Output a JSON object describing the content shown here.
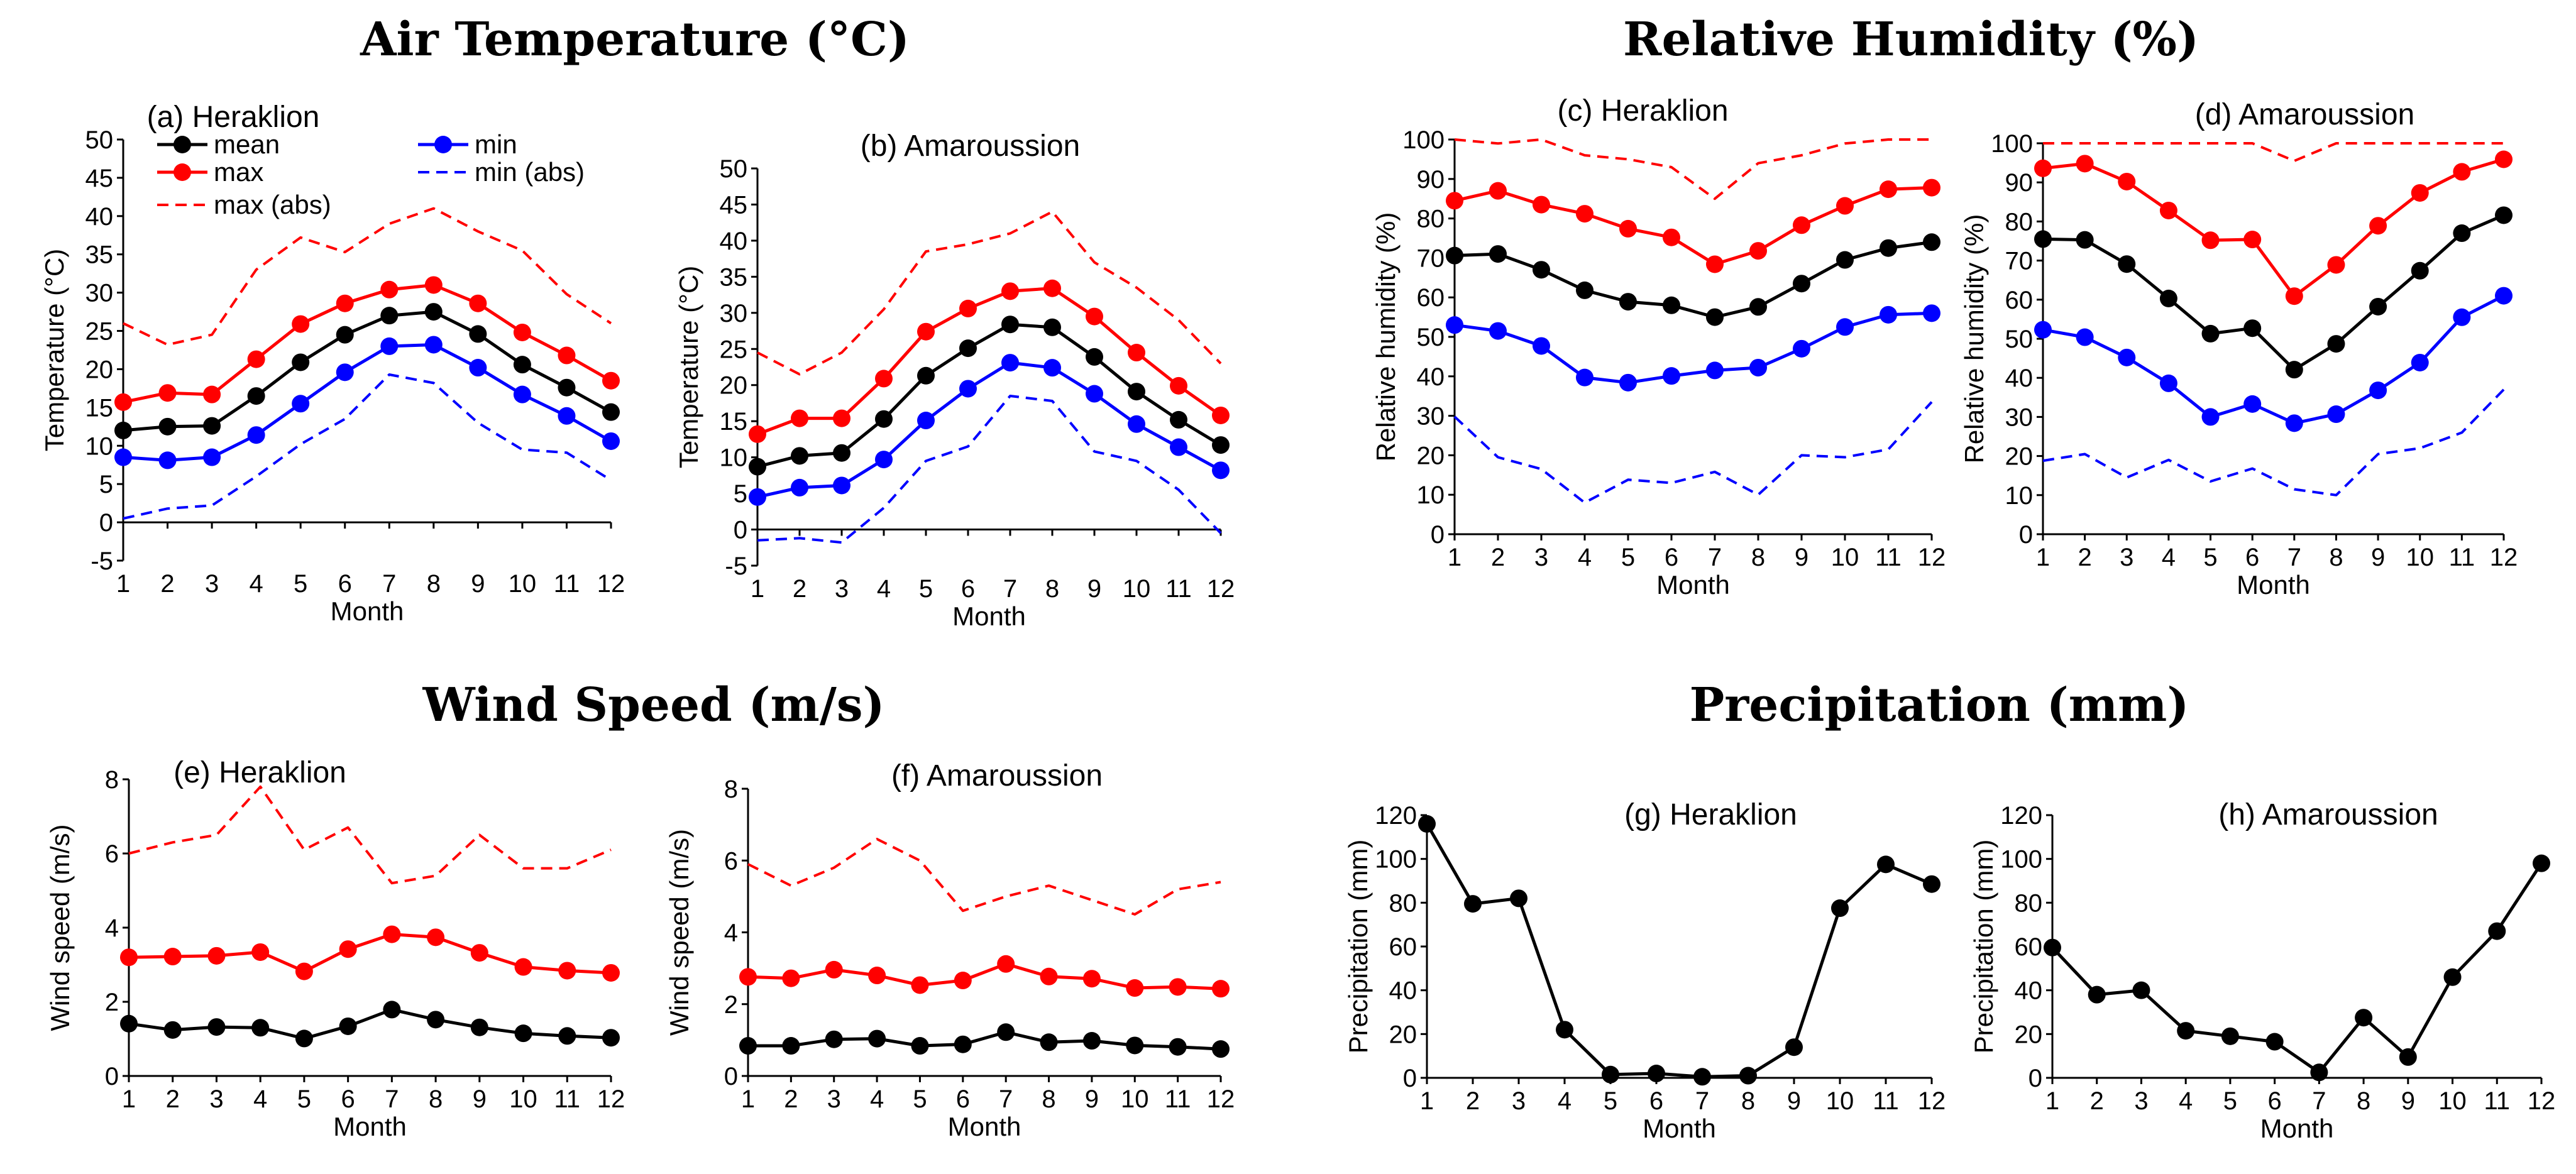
{
  "figure": {
    "group_titles": {
      "temperature": "Air Temperature (°C)",
      "humidity": "Relative Humidity (%)",
      "wind": "Wind Speed (m/s)",
      "precipitation": "Precipitation (mm)"
    },
    "colors": {
      "mean": "#000000",
      "max": "#ff0000",
      "min": "#0000ff"
    },
    "legend": {
      "mean": "mean",
      "max": "max",
      "max_abs": "max (abs)",
      "min": "min",
      "min_abs": "min (abs)"
    }
  },
  "chart_data": [
    {
      "id": "a",
      "type": "line",
      "title": "(a) Heraklion",
      "xlabel": "Month",
      "ylabel": "Temperature (°C)",
      "categories": [
        "1",
        "2",
        "3",
        "4",
        "5",
        "6",
        "7",
        "8",
        "9",
        "10",
        "11",
        "12"
      ],
      "ylim": [
        -5,
        50
      ],
      "ystep": 5,
      "series": [
        {
          "name": "max (abs)",
          "color": "#ff0000",
          "style": "dashed",
          "markers": false,
          "values": [
            26,
            23.2,
            24.5,
            33,
            37.2,
            35.3,
            39,
            41,
            38,
            35.5,
            29.8,
            26
          ]
        },
        {
          "name": "max",
          "color": "#ff0000",
          "style": "solid",
          "markers": true,
          "values": [
            15.7,
            16.9,
            16.7,
            21.3,
            25.9,
            28.6,
            30.4,
            31,
            28.6,
            24.8,
            21.8,
            18.5
          ]
        },
        {
          "name": "mean",
          "color": "#000000",
          "style": "solid",
          "markers": true,
          "values": [
            12,
            12.5,
            12.6,
            16.5,
            20.9,
            24.5,
            27,
            27.5,
            24.6,
            20.6,
            17.6,
            14.4
          ]
        },
        {
          "name": "min",
          "color": "#0000ff",
          "style": "solid",
          "markers": true,
          "values": [
            8.5,
            8.1,
            8.5,
            11.4,
            15.5,
            19.6,
            23,
            23.2,
            20.2,
            16.7,
            13.9,
            10.6
          ]
        },
        {
          "name": "min (abs)",
          "color": "#0000ff",
          "style": "dashed",
          "markers": false,
          "values": [
            0.5,
            1.8,
            2.2,
            6,
            10.2,
            13.5,
            19.3,
            18.2,
            13,
            9.5,
            9.1,
            5.5
          ]
        }
      ]
    },
    {
      "id": "b",
      "type": "line",
      "title": "(b) Amaroussion",
      "xlabel": "Month",
      "ylabel": "Temperature (°C)",
      "categories": [
        "1",
        "2",
        "3",
        "4",
        "5",
        "6",
        "7",
        "8",
        "9",
        "10",
        "11",
        "12"
      ],
      "ylim": [
        -5,
        50
      ],
      "ystep": 5,
      "series": [
        {
          "name": "max (abs)",
          "color": "#ff0000",
          "style": "dashed",
          "markers": false,
          "values": [
            24.5,
            21.5,
            24.5,
            30.5,
            38.5,
            39.5,
            41,
            44,
            37,
            33.5,
            29,
            23
          ]
        },
        {
          "name": "max",
          "color": "#ff0000",
          "style": "solid",
          "markers": true,
          "values": [
            13.2,
            15.4,
            15.4,
            20.9,
            27.4,
            30.6,
            33,
            33.4,
            29.5,
            24.5,
            19.9,
            15.8
          ]
        },
        {
          "name": "mean",
          "color": "#000000",
          "style": "solid",
          "markers": true,
          "values": [
            8.7,
            10.2,
            10.6,
            15.3,
            21.3,
            25.1,
            28.4,
            28,
            23.9,
            19.1,
            15.2,
            11.7
          ]
        },
        {
          "name": "min",
          "color": "#0000ff",
          "style": "solid",
          "markers": true,
          "values": [
            4.5,
            5.8,
            6.1,
            9.7,
            15.1,
            19.5,
            23.1,
            22.4,
            18.8,
            14.6,
            11.4,
            8.2
          ]
        },
        {
          "name": "min (abs)",
          "color": "#0000ff",
          "style": "dashed",
          "markers": false,
          "values": [
            -1.5,
            -1.2,
            -1.8,
            3,
            9.5,
            11.5,
            18.5,
            17.8,
            10.8,
            9.5,
            5.5,
            -0.5
          ]
        }
      ]
    },
    {
      "id": "c",
      "type": "line",
      "title": "(c) Heraklion",
      "xlabel": "Month",
      "ylabel": "Relative humidity (%)",
      "categories": [
        "1",
        "2",
        "3",
        "4",
        "5",
        "6",
        "7",
        "8",
        "9",
        "10",
        "11",
        "12"
      ],
      "ylim": [
        0,
        100
      ],
      "ystep": 10,
      "series": [
        {
          "name": "max (abs)",
          "color": "#ff0000",
          "style": "dashed",
          "markers": false,
          "values": [
            100,
            99,
            100,
            96,
            95,
            93,
            85,
            94,
            96,
            99,
            100,
            100
          ]
        },
        {
          "name": "max",
          "color": "#ff0000",
          "style": "solid",
          "markers": true,
          "values": [
            84.5,
            87,
            83.5,
            81.2,
            77.4,
            75.2,
            68.4,
            71.8,
            78.3,
            83.2,
            87.4,
            87.8
          ]
        },
        {
          "name": "mean",
          "color": "#000000",
          "style": "solid",
          "markers": true,
          "values": [
            70.6,
            71,
            67,
            61.8,
            58.9,
            58,
            55,
            57.6,
            63.5,
            69.5,
            72.5,
            74
          ]
        },
        {
          "name": "min",
          "color": "#0000ff",
          "style": "solid",
          "markers": true,
          "values": [
            53,
            51.5,
            47.7,
            39.7,
            38.4,
            40.1,
            41.5,
            42.2,
            47,
            52.5,
            55.6,
            56
          ]
        },
        {
          "name": "min (abs)",
          "color": "#0000ff",
          "style": "dashed",
          "markers": false,
          "values": [
            29.8,
            19.5,
            16.5,
            8,
            13.8,
            13,
            15.8,
            10,
            20,
            19.5,
            21.5,
            33.5
          ]
        }
      ]
    },
    {
      "id": "d",
      "type": "line",
      "title": "(d) Amaroussion",
      "xlabel": "Month",
      "ylabel": "Relative humidity (%)",
      "categories": [
        "1",
        "2",
        "3",
        "4",
        "5",
        "6",
        "7",
        "8",
        "9",
        "10",
        "11",
        "12"
      ],
      "ylim": [
        0,
        100
      ],
      "ystep": 10,
      "series": [
        {
          "name": "max (abs)",
          "color": "#ff0000",
          "style": "dashed",
          "markers": false,
          "values": [
            100,
            100,
            100,
            100,
            100,
            100,
            95.5,
            100,
            100,
            100,
            100,
            100
          ]
        },
        {
          "name": "max",
          "color": "#ff0000",
          "style": "solid",
          "markers": true,
          "values": [
            93.6,
            94.8,
            90.2,
            82.8,
            75.2,
            75.4,
            60.9,
            68.9,
            78.9,
            87.3,
            92.7,
            95.9
          ]
        },
        {
          "name": "mean",
          "color": "#000000",
          "style": "solid",
          "markers": true,
          "values": [
            75.5,
            75.3,
            69.1,
            60.3,
            51.3,
            52.7,
            42.1,
            48.7,
            58.2,
            67.4,
            77,
            81.6
          ]
        },
        {
          "name": "min",
          "color": "#0000ff",
          "style": "solid",
          "markers": true,
          "values": [
            52.3,
            50.4,
            45.2,
            38.6,
            30,
            33.3,
            28.4,
            30.7,
            36.8,
            43.9,
            55.5,
            61
          ]
        },
        {
          "name": "min (abs)",
          "color": "#0000ff",
          "style": "dashed",
          "markers": false,
          "values": [
            18.8,
            20.5,
            14.5,
            19,
            13.5,
            16.8,
            11.5,
            10,
            20.5,
            22,
            26,
            37
          ]
        }
      ]
    },
    {
      "id": "e",
      "type": "line",
      "title": "(e) Heraklion",
      "xlabel": "Month",
      "ylabel": "Wind speed (m/s)",
      "categories": [
        "1",
        "2",
        "3",
        "4",
        "5",
        "6",
        "7",
        "8",
        "9",
        "10",
        "11",
        "12"
      ],
      "ylim": [
        0,
        8
      ],
      "ystep": 2,
      "series": [
        {
          "name": "max (abs)",
          "color": "#ff0000",
          "style": "dashed",
          "markers": false,
          "values": [
            6,
            6.3,
            6.5,
            7.8,
            6.1,
            6.7,
            5.2,
            5.4,
            6.5,
            5.6,
            5.6,
            6.1
          ]
        },
        {
          "name": "max",
          "color": "#ff0000",
          "style": "solid",
          "markers": true,
          "values": [
            3.2,
            3.22,
            3.24,
            3.34,
            2.82,
            3.42,
            3.82,
            3.74,
            3.32,
            2.94,
            2.84,
            2.78
          ]
        },
        {
          "name": "mean",
          "color": "#000000",
          "style": "solid",
          "markers": true,
          "values": [
            1.41,
            1.24,
            1.32,
            1.3,
            1.01,
            1.34,
            1.79,
            1.52,
            1.31,
            1.15,
            1.08,
            1.03
          ]
        }
      ]
    },
    {
      "id": "f",
      "type": "line",
      "title": "(f) Amaroussion",
      "xlabel": "Month",
      "ylabel": "Wind speed (m/s)",
      "categories": [
        "1",
        "2",
        "3",
        "4",
        "5",
        "6",
        "7",
        "8",
        "9",
        "10",
        "11",
        "12"
      ],
      "ylim": [
        0,
        8
      ],
      "ystep": 2,
      "series": [
        {
          "name": "max (abs)",
          "color": "#ff0000",
          "style": "dashed",
          "markers": false,
          "values": [
            5.9,
            5.3,
            5.8,
            6.6,
            6,
            4.6,
            5,
            5.3,
            4.9,
            4.5,
            5.2,
            5.4
          ]
        },
        {
          "name": "max",
          "color": "#ff0000",
          "style": "solid",
          "markers": true,
          "values": [
            2.76,
            2.72,
            2.96,
            2.8,
            2.53,
            2.66,
            3.12,
            2.77,
            2.71,
            2.45,
            2.48,
            2.43
          ]
        },
        {
          "name": "mean",
          "color": "#000000",
          "style": "solid",
          "markers": true,
          "values": [
            0.84,
            0.84,
            1.02,
            1.04,
            0.84,
            0.88,
            1.22,
            0.94,
            0.98,
            0.85,
            0.81,
            0.75
          ]
        }
      ]
    },
    {
      "id": "g",
      "type": "line",
      "title": "(g) Heraklion",
      "xlabel": "Month",
      "ylabel": "Precipitation (mm)",
      "categories": [
        "1",
        "2",
        "3",
        "4",
        "5",
        "6",
        "7",
        "8",
        "9",
        "10",
        "11",
        "12"
      ],
      "ylim": [
        0,
        120
      ],
      "ystep": 20,
      "series": [
        {
          "name": "mean",
          "color": "#000000",
          "style": "solid",
          "markers": true,
          "values": [
            116,
            79.5,
            82,
            22,
            1.5,
            2,
            0.5,
            1,
            14,
            77.5,
            97.5,
            88.5
          ]
        }
      ]
    },
    {
      "id": "h",
      "type": "line",
      "title": "(h) Amaroussion",
      "xlabel": "Month",
      "ylabel": "Precipitation (mm)",
      "categories": [
        "1",
        "2",
        "3",
        "4",
        "5",
        "6",
        "7",
        "8",
        "9",
        "10",
        "11",
        "12"
      ],
      "ylim": [
        0,
        120
      ],
      "ystep": 20,
      "series": [
        {
          "name": "mean",
          "color": "#000000",
          "style": "solid",
          "markers": true,
          "values": [
            59.5,
            38,
            40,
            21.5,
            19,
            16.5,
            2.5,
            27.5,
            9.5,
            46,
            67,
            98
          ]
        }
      ]
    }
  ]
}
